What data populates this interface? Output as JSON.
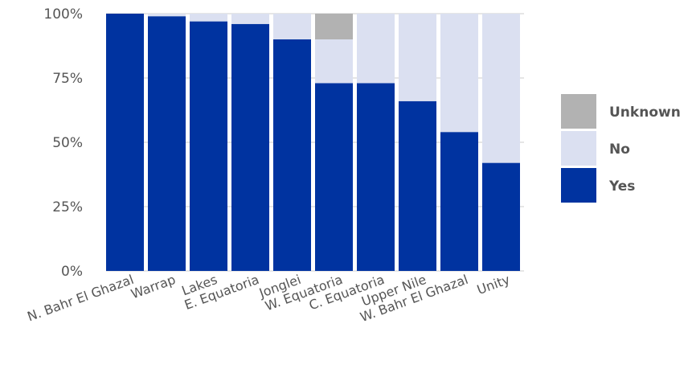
{
  "chart_data": {
    "type": "bar",
    "stacked": true,
    "categories": [
      "N. Bahr El Ghazal",
      "Warrap",
      "Lakes",
      "E. Equatoria",
      "Jonglei",
      "W. Equatoria",
      "C. Equatoria",
      "Upper Nile",
      "W. Bahr El Ghazal",
      "Unity"
    ],
    "series": [
      {
        "name": "Yes",
        "color": "#0033a0",
        "values": [
          100,
          99,
          97,
          96,
          90,
          73,
          73,
          66,
          54,
          42
        ]
      },
      {
        "name": "No",
        "color": "#dbe0f1",
        "values": [
          0,
          1,
          3,
          4,
          10,
          17,
          27,
          34,
          46,
          58
        ]
      },
      {
        "name": "Unknown",
        "color": "#b2b2b2",
        "values": [
          0,
          0,
          0,
          0,
          0,
          10,
          0,
          0,
          0,
          0
        ]
      }
    ],
    "ylim": [
      0,
      100
    ],
    "yticks": [
      "0%",
      "25%",
      "50%",
      "75%",
      "100%"
    ],
    "ytick_values": [
      0,
      25,
      50,
      75,
      100
    ],
    "legend": {
      "position": "right",
      "order": [
        "Unknown",
        "No",
        "Yes"
      ]
    },
    "grid": true,
    "grid_color": "#cccccc",
    "text_color": "#555555"
  }
}
